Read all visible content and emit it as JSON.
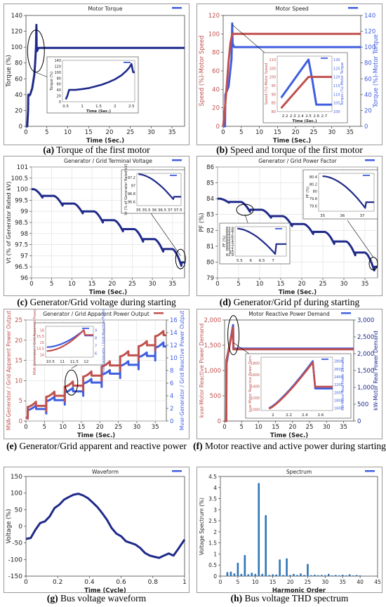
{
  "panels": [
    {
      "id": "a",
      "caption": {
        "letter": "a",
        "text": "Torque of the first motor"
      },
      "title": "Motor Torque",
      "xlabel": "Time (Sec.)",
      "ylabel": "Torque (%)",
      "xticks": [
        0,
        5,
        10,
        15,
        20,
        25,
        30,
        35
      ],
      "yticks": [
        0,
        20,
        40,
        60,
        80,
        100,
        120,
        140
      ]
    },
    {
      "id": "b",
      "caption": {
        "letter": "b",
        "text": "Speed and torque of the first motor"
      },
      "title": "Motor Speed",
      "xlabel": "Time (Sec.)",
      "ylabel": "Speed (%)-Motor Speed",
      "y2label": "Torque (%)-Motor Torque",
      "xticks": [
        0,
        5,
        10,
        15,
        20,
        25,
        30,
        35
      ],
      "yticks": [
        0,
        20,
        40,
        60,
        80,
        100,
        120
      ],
      "y2ticks": [
        0,
        20,
        40,
        60,
        80,
        100,
        120,
        140
      ]
    },
    {
      "id": "c",
      "caption": {
        "letter": "c",
        "text": "Generator/Grid voltage during starting"
      },
      "title": "Generator / Grid Terminal Voltage",
      "xlabel": "Time (Sec.)",
      "ylabel": "Vt (% of Generator Rated kV)",
      "xticks": [
        0,
        5,
        10,
        15,
        20,
        25,
        30,
        35
      ],
      "yticks": [
        96,
        96.5,
        97,
        97.5,
        98,
        98.5,
        99,
        99.5,
        100,
        100.5,
        101
      ]
    },
    {
      "id": "d",
      "caption": {
        "letter": "d",
        "text": "Generator/Grid pf during starting"
      },
      "title": "Generator / Grid Power Factor",
      "xlabel": "Time (Sec.)",
      "ylabel": "PF (%)",
      "xticks": [
        0,
        5,
        10,
        15,
        20,
        25,
        30,
        35
      ],
      "yticks": [
        79,
        80,
        81,
        82,
        83,
        84,
        85,
        86
      ]
    },
    {
      "id": "e",
      "caption": {
        "letter": "e",
        "text": "Generator/Grid apparent and reactive power"
      },
      "title": "Generator / Grid Apparent Power Output",
      "xlabel": "Time (Sec.)",
      "ylabel": "MVA-Generator / Grid Apparent Power Output",
      "y2label": "Mvar-Generator / Grid Reactive Power Output",
      "xticks": [
        0,
        5,
        10,
        15,
        20,
        25,
        30,
        35
      ],
      "yticks": [
        0,
        5,
        10,
        15,
        20,
        25
      ],
      "y2ticks": [
        0,
        2,
        4,
        6,
        8,
        10,
        12,
        14,
        16
      ]
    },
    {
      "id": "f",
      "caption": {
        "letter": "f",
        "text": "Motor reactive and active power during starting"
      },
      "title": "Motor Reactive Power Demand",
      "xlabel": "Time (Sec.)",
      "ylabel": "kvar-Motor Reactive Power Demand",
      "y2label": "kW-Motor Real Power Demand",
      "xticks": [
        0,
        5,
        10,
        15,
        20,
        25,
        30,
        35
      ],
      "yticks": [
        "0",
        "500",
        "1,000",
        "1,500",
        "2,000"
      ],
      "y2ticks": [
        "0",
        "500",
        "1,000",
        "1,500",
        "2,000",
        "2,500",
        "3,000"
      ]
    },
    {
      "id": "g",
      "caption": {
        "letter": "g",
        "text": "Bus voltage waveform"
      },
      "title": "Waveform",
      "xlabel": "Time (Cycle)",
      "ylabel": "Voltage (%)",
      "xticks": [
        "0",
        "0.2",
        "0.4",
        "0.6",
        "0.8",
        "1"
      ],
      "yticks": [
        -150,
        -100,
        -50,
        0,
        50,
        100,
        150
      ]
    },
    {
      "id": "h",
      "caption": {
        "letter": "h",
        "text": "Bus voltage THD spectrum"
      },
      "title": "Spectrum",
      "xlabel": "Harmonic Order",
      "ylabel": "Voltage Spectrum (%)",
      "xticks": [
        0,
        5,
        10,
        15,
        20,
        25,
        30,
        35,
        40,
        45
      ],
      "yticks": [
        "0",
        "0.5",
        "1",
        "1.5",
        "2",
        "2.5",
        "3",
        "3.5",
        "4",
        "4.5"
      ]
    }
  ],
  "insets": {
    "a": {
      "ylabel": "Torque (%)",
      "xlabel": "Time (Sec.)",
      "xticks": [
        "0.5",
        "1",
        "1.5",
        "2",
        "2.5"
      ],
      "yticks": [
        0,
        20,
        40,
        60,
        80,
        100,
        120,
        140
      ]
    },
    "b": {
      "ylabel": "Speed (%)-Motor Speed",
      "y2label": "Torque (%)-Motor Torque",
      "xlabel": "Time (Sec.)",
      "xticks": [
        "2.2",
        "2.3",
        "2.4",
        "2.5",
        "2.6",
        "2.7"
      ],
      "yticks": [
        80,
        85,
        90,
        95,
        100,
        105,
        110
      ],
      "y2ticks": [
        100,
        105,
        110,
        115,
        120,
        125,
        130
      ]
    },
    "c": {
      "ylabel": "Vt (% of Generator Rated kV)",
      "xticks": [
        "35",
        "35.5",
        "36",
        "36.5",
        "37",
        "37.5"
      ],
      "yticks": [
        "96.6",
        "96.8",
        "97",
        "97.2"
      ]
    },
    "d1": {
      "ylabel": "PF (%)",
      "xticks": [
        "35",
        "36",
        "37"
      ],
      "yticks": [
        "79.6",
        "79.8",
        "80",
        "80.2",
        "80.4"
      ]
    },
    "d2": {
      "ylabel": "PF (%)",
      "xticks": [
        "5.5",
        "6",
        "6.5",
        "7"
      ],
      "yticks": [
        "82.9",
        "83",
        "83.1",
        "83.2",
        "83.3",
        "83.4",
        "83.5",
        "83.6",
        "83.7",
        "83.8",
        "83.9"
      ]
    },
    "e": {
      "ylabel": "MVA-Generator / Grid Apparent Power",
      "y2label": "Mvar-Generator / Grid Reactive Power",
      "xticks": [
        "10.5",
        "11",
        "11.5",
        "12"
      ],
      "yticks": [
        14,
        14.5,
        15,
        15.5,
        16
      ],
      "y2ticks": [
        6,
        7,
        8,
        9
      ]
    },
    "f": {
      "ylabel": "kvar-Motor Reactive Power Dem",
      "y2label": "kW-Motor Real Power Demand",
      "xticks": [
        "2",
        "2.2",
        "2.4",
        "2.6"
      ],
      "yticks": [
        "1000",
        "1200",
        "1400",
        "1600",
        "1800"
      ],
      "y2ticks": [
        "1600",
        "1800",
        "2000",
        "2200",
        "2400",
        "2600",
        "2800"
      ]
    }
  },
  "chart_data": [
    {
      "type": "line",
      "panel": "a",
      "title": "Motor Torque",
      "xlabel": "Time (Sec.)",
      "ylabel": "Torque (%)",
      "xlim": [
        0,
        38
      ],
      "ylim": [
        0,
        140
      ],
      "x": [
        0,
        0.3,
        0.5,
        0.55,
        0.6,
        1,
        1.5,
        2,
        2.2,
        2.4,
        2.5,
        2.55,
        2.65,
        3,
        38
      ],
      "y": [
        0,
        0,
        20,
        40,
        38,
        40,
        48,
        65,
        80,
        100,
        128,
        100,
        95,
        99,
        99
      ]
    },
    {
      "type": "line",
      "panel": "b",
      "title": "Motor Speed",
      "xlabel": "Time (Sec.)",
      "ylabel": "Speed (%)-Motor Speed",
      "y2label": "Torque (%)-Motor Torque",
      "xlim": [
        0,
        38
      ],
      "ylim": [
        0,
        120
      ],
      "y2lim": [
        0,
        140
      ],
      "series": [
        {
          "axis": "y",
          "color": "#c0504d",
          "x": [
            0,
            0.5,
            1,
            1.5,
            2,
            2.5,
            38
          ],
          "y": [
            0,
            20,
            45,
            70,
            90,
            100,
            100
          ]
        },
        {
          "axis": "y2",
          "color": "#3f5ee0",
          "x": [
            0,
            0.5,
            0.6,
            1.5,
            2.3,
            2.5,
            2.6,
            3,
            38
          ],
          "y": [
            0,
            0,
            40,
            50,
            85,
            130,
            105,
            100,
            100
          ]
        }
      ]
    },
    {
      "type": "line",
      "panel": "c",
      "title": "Generator / Grid Terminal Voltage",
      "xlabel": "Time (Sec.)",
      "ylabel": "Vt (% of Generator Rated kV)",
      "xlim": [
        0,
        38
      ],
      "ylim": [
        96,
        101
      ],
      "steps_start": [
        0.5,
        5.5,
        10.5,
        15.5,
        20.5,
        25.5,
        30.5,
        35.0
      ],
      "levels": [
        100.0,
        99.7,
        99.35,
        99.0,
        98.6,
        98.2,
        97.75,
        97.3
      ],
      "final": 96.7
    },
    {
      "type": "line",
      "panel": "d",
      "title": "Generator / Grid Power Factor",
      "xlabel": "Time (Sec.)",
      "ylabel": "PF (%)",
      "xlim": [
        0,
        38
      ],
      "ylim": [
        79,
        86
      ],
      "steps_start": [
        0.5,
        5.5,
        10.5,
        15.5,
        20.5,
        25.5,
        30.5,
        35.0
      ],
      "levels": [
        84.0,
        83.8,
        83.3,
        82.9,
        82.4,
        81.9,
        81.3,
        80.6
      ],
      "final": 79.7
    },
    {
      "type": "line",
      "panel": "e",
      "title": "Generator / Grid Apparent Power Output",
      "xlabel": "Time (Sec.)",
      "ylabel": "MVA-Generator / Grid Apparent Power Output",
      "y2label": "Mvar-Generator / Grid Reactive Power Output",
      "xlim": [
        0,
        38
      ],
      "ylim": [
        0,
        25
      ],
      "y2lim": [
        0,
        16
      ],
      "series": [
        {
          "axis": "y",
          "color": "#c0504d",
          "steps_start": [
            0.5,
            5.5,
            10.5,
            15.5,
            20.5,
            25.5,
            30.5,
            35.0
          ],
          "levels": [
            2.5,
            5,
            7.5,
            10,
            12.5,
            15,
            17.5,
            20
          ],
          "final": 22.5
        },
        {
          "axis": "y2",
          "color": "#3f5ee0",
          "steps_start": [
            0.5,
            5.5,
            10.5,
            15.5,
            20.5,
            25.5,
            30.5,
            35.0
          ],
          "levels": [
            1.2,
            2.6,
            4.0,
            5.4,
            6.8,
            8.2,
            9.6,
            11.0
          ],
          "final": 12.6
        }
      ]
    },
    {
      "type": "line",
      "panel": "f",
      "title": "Motor Reactive Power Demand",
      "xlabel": "Time (Sec.)",
      "ylabel": "kvar-Motor Reactive Power Demand",
      "y2label": "kW-Motor Real Power Demand",
      "xlim": [
        0,
        38
      ],
      "ylim": [
        0,
        2000
      ],
      "y2lim": [
        0,
        3000
      ],
      "series": [
        {
          "axis": "y",
          "color": "#c0504d",
          "x": [
            0,
            0.5,
            0.55,
            2.5,
            2.6,
            38
          ],
          "y": [
            0,
            0,
            1200,
            1850,
            1420,
            1420
          ]
        },
        {
          "axis": "y2",
          "color": "#3f5ee0",
          "x": [
            0,
            0.5,
            0.55,
            2.5,
            2.6,
            38
          ],
          "y": [
            0,
            0,
            1700,
            2850,
            2150,
            2150
          ]
        }
      ]
    },
    {
      "type": "line",
      "panel": "g",
      "title": "Waveform",
      "xlabel": "Time (Cycle)",
      "ylabel": "Voltage (%)",
      "xlim": [
        0,
        1
      ],
      "ylim": [
        -150,
        150
      ],
      "x": [
        0,
        0.03,
        0.06,
        0.09,
        0.12,
        0.15,
        0.18,
        0.21,
        0.24,
        0.27,
        0.3,
        0.33,
        0.36,
        0.39,
        0.42,
        0.45,
        0.48,
        0.51,
        0.54,
        0.57,
        0.6,
        0.63,
        0.66,
        0.69,
        0.72,
        0.75,
        0.78,
        0.81,
        0.84,
        0.87,
        0.9,
        0.93,
        0.96,
        1.0
      ],
      "y": [
        -38,
        -35,
        -10,
        10,
        15,
        30,
        55,
        65,
        80,
        88,
        95,
        98,
        93,
        85,
        72,
        58,
        40,
        20,
        -5,
        -22,
        -30,
        -45,
        -50,
        -55,
        -65,
        -80,
        -88,
        -92,
        -95,
        -88,
        -82,
        -88,
        -68,
        -40
      ]
    },
    {
      "type": "bar",
      "panel": "h",
      "title": "Spectrum",
      "xlabel": "Harmonic Order",
      "ylabel": "Voltage Spectrum (%)",
      "xlim": [
        0,
        45
      ],
      "ylim": [
        0,
        4.5
      ],
      "x": [
        2,
        3,
        4,
        5,
        6,
        7,
        8,
        9,
        10,
        11,
        12,
        13,
        14,
        15,
        16,
        17,
        18,
        19,
        20,
        21,
        22,
        23,
        24,
        25,
        26,
        27,
        28,
        29,
        30,
        31,
        32,
        33,
        34,
        35,
        36,
        37,
        38,
        39,
        40
      ],
      "y": [
        0.18,
        0.2,
        0.12,
        0.6,
        0.1,
        0.95,
        0.08,
        0.15,
        0.1,
        4.2,
        0.1,
        2.75,
        0.05,
        0.08,
        0.07,
        0.75,
        0.05,
        0.8,
        0.05,
        0.1,
        0.05,
        0.12,
        0.05,
        0.55,
        0.04,
        0.06,
        0.04,
        0.05,
        0.04,
        0.1,
        0.03,
        0.05,
        0.03,
        0.06,
        0.03,
        0.08,
        0.03,
        0.05,
        0.03
      ]
    }
  ]
}
